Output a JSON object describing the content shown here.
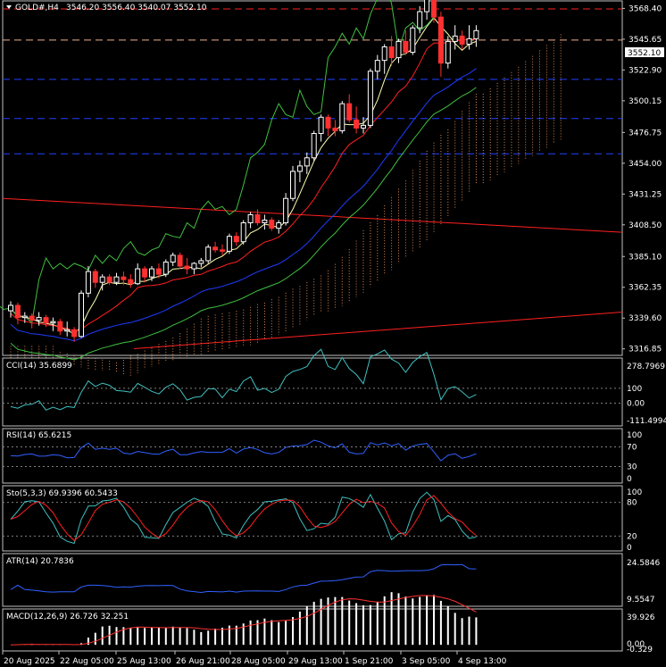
{
  "header": {
    "symbol": "GOLD#,H4",
    "ohlc": "3546.20 3556.40 3540.07 3552.10"
  },
  "colors": {
    "background": "#000000",
    "border": "#c0c0c0",
    "bull_candle": "#ffffff",
    "bear_candle": "#ff3030",
    "text": "#ffffff",
    "red_line": "#ff2020",
    "blue_line": "#1e3cff",
    "green_line": "#40c040",
    "ichimoku_cloud": "#ffa060",
    "ichimoku_cloud_dark": "#ffffff",
    "hline_red": "#ff2020",
    "hline_blue": "#2040ff",
    "hline_orange": "#f0b090",
    "indicator_line": "#40c0c0",
    "rsi_line": "#3060ff",
    "stoch_main": "#40c0c0",
    "stoch_signal": "#ff2020",
    "atr_line": "#3060ff",
    "macd_hist": "#ffffff",
    "macd_signal": "#ff3030"
  },
  "main_axis": {
    "labels": [
      "3568.40",
      "3545.65",
      "3522.90",
      "3500.15",
      "3476.75",
      "3454.00",
      "3431.25",
      "3408.50",
      "3385.10",
      "3362.35",
      "3339.60",
      "3316.85"
    ],
    "ymax": 3570,
    "ymin": 3316,
    "price_marker": "3552.10"
  },
  "time_axis": [
    "20 Aug 2025",
    "22 Aug 05:00",
    "25 Aug 13:00",
    "26 Aug 21:00",
    "28 Aug 05:00",
    "29 Aug 13:00",
    "1 Sep 21:00",
    "3 Sep 05:00",
    "4 Sep 13:00"
  ],
  "chart_data": {
    "type": "candlestick",
    "symbol": "GOLD#",
    "timeframe": "H4",
    "candles": [
      [
        3345,
        3352,
        3340,
        3349
      ],
      [
        3349,
        3351,
        3335,
        3340
      ],
      [
        3340,
        3344,
        3336,
        3341
      ],
      [
        3341,
        3343,
        3332,
        3338
      ],
      [
        3338,
        3344,
        3334,
        3340
      ],
      [
        3340,
        3342,
        3333,
        3336
      ],
      [
        3336,
        3340,
        3330,
        3337
      ],
      [
        3337,
        3339,
        3327,
        3330
      ],
      [
        3330,
        3337,
        3326,
        3331
      ],
      [
        3331,
        3333,
        3322,
        3326
      ],
      [
        3326,
        3360,
        3325,
        3358
      ],
      [
        3358,
        3378,
        3355,
        3374
      ],
      [
        3374,
        3376,
        3362,
        3366
      ],
      [
        3366,
        3372,
        3360,
        3370
      ],
      [
        3370,
        3372,
        3364,
        3366
      ],
      [
        3366,
        3373,
        3364,
        3370
      ],
      [
        3370,
        3374,
        3364,
        3368
      ],
      [
        3368,
        3372,
        3362,
        3365
      ],
      [
        3365,
        3380,
        3364,
        3376
      ],
      [
        3376,
        3378,
        3366,
        3370
      ],
      [
        3370,
        3378,
        3367,
        3376
      ],
      [
        3376,
        3380,
        3369,
        3372
      ],
      [
        3372,
        3383,
        3370,
        3381
      ],
      [
        3381,
        3388,
        3378,
        3386
      ],
      [
        3386,
        3388,
        3376,
        3378
      ],
      [
        3378,
        3384,
        3372,
        3376
      ],
      [
        3376,
        3381,
        3372,
        3380
      ],
      [
        3380,
        3384,
        3377,
        3382
      ],
      [
        3382,
        3394,
        3380,
        3392
      ],
      [
        3392,
        3396,
        3388,
        3390
      ],
      [
        3390,
        3394,
        3386,
        3389
      ],
      [
        3389,
        3402,
        3387,
        3400
      ],
      [
        3400,
        3403,
        3393,
        3396
      ],
      [
        3396,
        3412,
        3394,
        3410
      ],
      [
        3410,
        3418,
        3406,
        3416
      ],
      [
        3416,
        3420,
        3408,
        3410
      ],
      [
        3410,
        3416,
        3405,
        3412
      ],
      [
        3412,
        3414,
        3404,
        3406
      ],
      [
        3406,
        3412,
        3402,
        3410
      ],
      [
        3410,
        3432,
        3408,
        3428
      ],
      [
        3428,
        3452,
        3426,
        3448
      ],
      [
        3448,
        3456,
        3440,
        3452
      ],
      [
        3452,
        3462,
        3446,
        3458
      ],
      [
        3458,
        3478,
        3456,
        3476
      ],
      [
        3476,
        3490,
        3470,
        3488
      ],
      [
        3488,
        3490,
        3474,
        3480
      ],
      [
        3480,
        3486,
        3474,
        3478
      ],
      [
        3478,
        3500,
        3476,
        3498
      ],
      [
        3498,
        3505,
        3484,
        3486
      ],
      [
        3486,
        3496,
        3476,
        3480
      ],
      [
        3480,
        3488,
        3476,
        3482
      ],
      [
        3482,
        3524,
        3480,
        3522
      ],
      [
        3522,
        3534,
        3516,
        3530
      ],
      [
        3530,
        3542,
        3520,
        3540
      ],
      [
        3540,
        3548,
        3526,
        3532
      ],
      [
        3532,
        3546,
        3528,
        3544
      ],
      [
        3544,
        3552,
        3534,
        3536
      ],
      [
        3536,
        3556,
        3534,
        3554
      ],
      [
        3554,
        3570,
        3550,
        3566
      ],
      [
        3566,
        3578,
        3560,
        3576
      ],
      [
        3576,
        3580,
        3558,
        3562
      ],
      [
        3562,
        3566,
        3518,
        3528
      ],
      [
        3528,
        3548,
        3524,
        3544
      ],
      [
        3544,
        3556,
        3538,
        3548
      ],
      [
        3548,
        3552,
        3538,
        3542
      ],
      [
        3542,
        3556,
        3538,
        3546
      ],
      [
        3546,
        3556,
        3540,
        3552
      ]
    ],
    "indicators": [
      {
        "name": "CCI(14)",
        "value": "35.6899",
        "levels": [
          "278.7969",
          "100",
          "0.00",
          "-111.4994"
        ]
      },
      {
        "name": "RSI(14)",
        "value": "65.6215",
        "levels": [
          "100",
          "70",
          "30",
          "0"
        ]
      },
      {
        "name": "Sto(5,3,3)",
        "value": "69.9396 60.5433",
        "levels": [
          "100",
          "80",
          "20",
          "0"
        ]
      },
      {
        "name": "ATR(14)",
        "value": "20.7836",
        "levels": [
          "24.5846",
          "9.5547"
        ]
      },
      {
        "name": "MACD(12,26,9)",
        "value": "26.726 32.251",
        "levels": [
          "39.926",
          "0.00",
          "-0.329"
        ]
      }
    ]
  }
}
